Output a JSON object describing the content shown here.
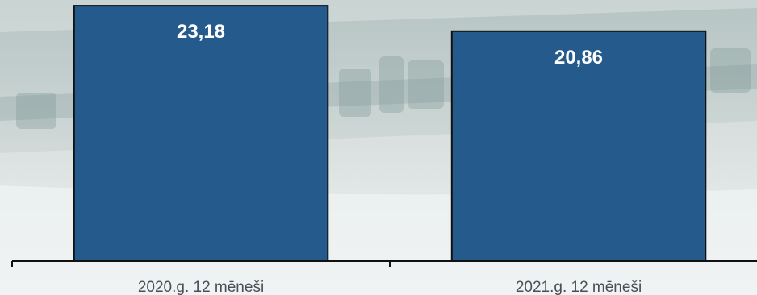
{
  "chart_data": {
    "type": "bar",
    "categories": [
      "2020.g. 12 mēneši",
      "2021.g. 12 mēneši"
    ],
    "values": [
      23.18,
      20.86
    ],
    "value_labels": [
      "23,18",
      "20,86"
    ],
    "ylim": [
      0,
      23.7
    ],
    "bar_color": "#255a8c",
    "bar_outline_color": "#111111",
    "axis_color": "#111111",
    "grid": false,
    "legend": "none"
  }
}
